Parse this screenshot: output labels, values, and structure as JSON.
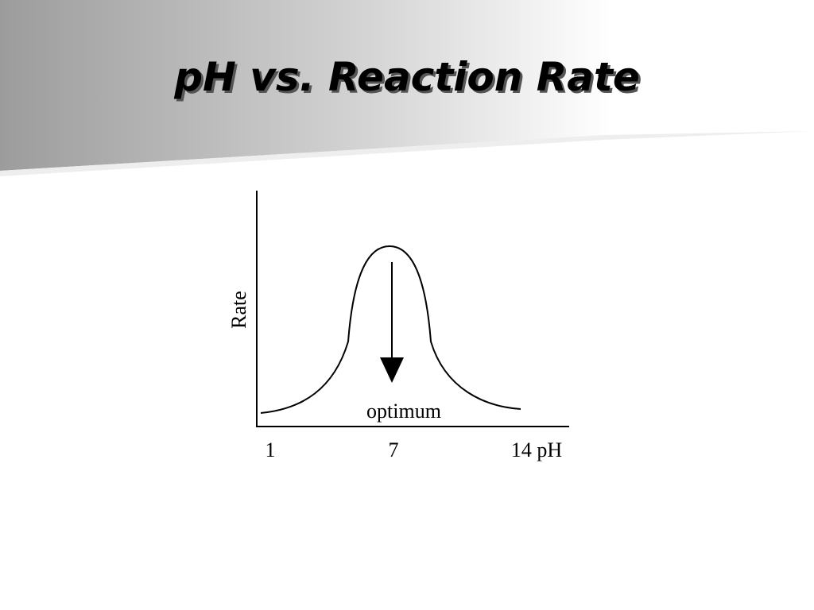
{
  "title": "pH vs. Reaction Rate",
  "graph": {
    "y_label": "Rate",
    "x_labels": [
      "1",
      "7",
      "14 pH"
    ],
    "annotation": "optimum"
  }
}
